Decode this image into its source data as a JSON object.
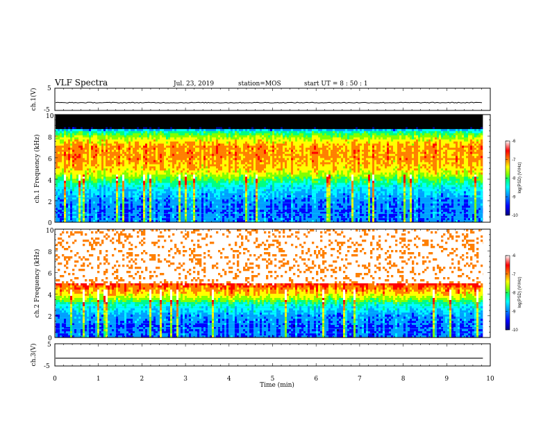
{
  "header": {
    "title": "VLF Spectra",
    "date": "Jul. 23, 2019",
    "station": "station=MOS",
    "start": "start UT =  8 : 50 : 1"
  },
  "colorbar": {
    "label": "log(PSD) (V²/Hz)",
    "ticks": [
      "-6",
      "-7",
      "-8",
      "-9",
      "-10"
    ],
    "range": [
      -10,
      -6
    ],
    "colors": [
      "#000080",
      "#0000ff",
      "#00a0ff",
      "#00ffff",
      "#00ff80",
      "#80ff00",
      "#ffff00",
      "#ff8000",
      "#ff0000",
      "#ffffff"
    ]
  },
  "chart_data": [
    {
      "type": "line",
      "panel": "ch1-waveform",
      "ylabel": "ch.1(V)",
      "ylim": [
        -5,
        5
      ],
      "y_ticks": [
        "5",
        "-5"
      ],
      "x": [
        0,
        1,
        2,
        3,
        4,
        5,
        6,
        7,
        8,
        9,
        9.83
      ],
      "values": [
        -1.5,
        -1.5,
        -1.5,
        -1.5,
        -1.5,
        -1.5,
        -1.5,
        -1.5,
        -1.5,
        -1.5,
        -1.5
      ]
    },
    {
      "type": "heatmap",
      "panel": "ch1-spectrogram",
      "ylabel": "ch.1 Frequency (kHz)",
      "ylim": [
        0,
        10
      ],
      "y_ticks": [
        "10",
        "8",
        "6",
        "4",
        "2",
        "0"
      ],
      "freq_bands_kHz": [
        0,
        1,
        2,
        3,
        3.5,
        4,
        4.5,
        5,
        6,
        7,
        7.5,
        8,
        8.5,
        9,
        10
      ],
      "log_psd_profile": [
        -9.2,
        -9.3,
        -9.2,
        -8.8,
        -8.5,
        -8.0,
        -7.5,
        -7.2,
        -7.0,
        -7.0,
        -7.3,
        -7.8,
        -8.5,
        -12,
        -12
      ]
    },
    {
      "type": "heatmap",
      "panel": "ch2-spectrogram",
      "ylabel": "ch.2 Frequency (kHz)",
      "ylim": [
        0,
        10
      ],
      "y_ticks": [
        "10",
        "8",
        "6",
        "4",
        "2",
        "0"
      ],
      "freq_bands_kHz": [
        0,
        1,
        2,
        3,
        3.5,
        4,
        4.5,
        5,
        6,
        7,
        8,
        9,
        10
      ],
      "log_psd_profile": [
        -9.3,
        -9.3,
        -9.1,
        -8.5,
        -7.8,
        -7.2,
        -6.9,
        -6.5,
        -6.2,
        -6.1,
        -6.0,
        -6.0,
        -6.0
      ]
    },
    {
      "type": "line",
      "panel": "ch3-waveform",
      "ylabel": "ch.3(V)",
      "ylim": [
        -5,
        5
      ],
      "y_ticks": [
        "5",
        "-5"
      ],
      "x": [
        0,
        9.83
      ],
      "values": [
        -1.5,
        -1.5
      ]
    }
  ],
  "x_axis": {
    "label": "Time (min)",
    "range": [
      0,
      10
    ],
    "data_end": 9.83,
    "ticks": [
      "0",
      "1",
      "2",
      "3",
      "4",
      "5",
      "6",
      "7",
      "8",
      "9",
      "10"
    ]
  }
}
